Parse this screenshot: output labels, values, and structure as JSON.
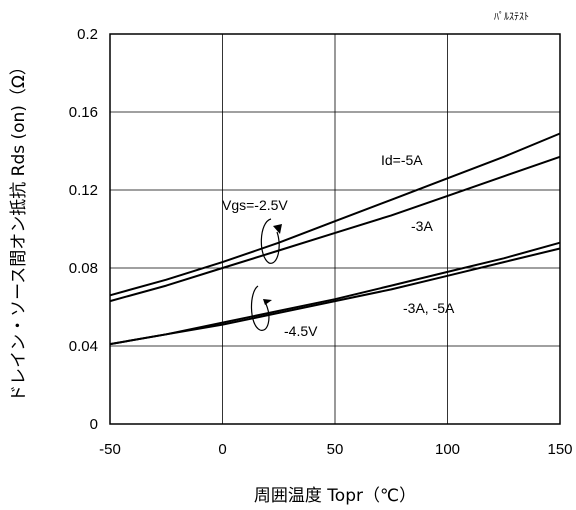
{
  "chart_data": {
    "type": "line",
    "title": "",
    "note": "ﾊﾟﾙｽﾃｽﾄ",
    "xlabel": "周囲温度 Topr（℃）",
    "ylabel": "ドレイン・ソース間オン抵抗 Rds (on)（Ω）",
    "xlim": [
      -50,
      150
    ],
    "ylim": [
      0,
      0.2
    ],
    "x_ticks": [
      "-50",
      "0",
      "50",
      "100",
      "150"
    ],
    "y_ticks": [
      "0",
      "0.04",
      "0.08",
      "0.12",
      "0.16",
      "0.2"
    ],
    "grid": true,
    "series": [
      {
        "name": "Vgs=-2.5V, Id=-5A",
        "x": [
          -50,
          -25,
          0,
          25,
          50,
          75,
          100,
          125,
          150
        ],
        "values": [
          0.066,
          0.074,
          0.083,
          0.093,
          0.104,
          0.115,
          0.126,
          0.137,
          0.149
        ]
      },
      {
        "name": "Vgs=-2.5V, Id=-3A",
        "x": [
          -50,
          -25,
          0,
          25,
          50,
          75,
          100,
          125,
          150
        ],
        "values": [
          0.063,
          0.071,
          0.08,
          0.089,
          0.098,
          0.107,
          0.117,
          0.127,
          0.137
        ]
      },
      {
        "name": "Vgs=-4.5V, Id=-5A",
        "x": [
          -50,
          -25,
          0,
          25,
          50,
          75,
          100,
          125,
          150
        ],
        "values": [
          0.041,
          0.046,
          0.052,
          0.058,
          0.064,
          0.071,
          0.078,
          0.085,
          0.093
        ]
      },
      {
        "name": "Vgs=-4.5V, Id=-3A",
        "x": [
          -50,
          -25,
          0,
          25,
          50,
          75,
          100,
          125,
          150
        ],
        "values": [
          0.041,
          0.046,
          0.051,
          0.057,
          0.063,
          0.069,
          0.076,
          0.083,
          0.09
        ]
      }
    ],
    "annotations": {
      "id5": "Id=-5A",
      "id3": "-3A",
      "vgs25": "Vgs=-2.5V",
      "id35": "-3A, -5A",
      "vgs45": "-4.5V"
    }
  }
}
